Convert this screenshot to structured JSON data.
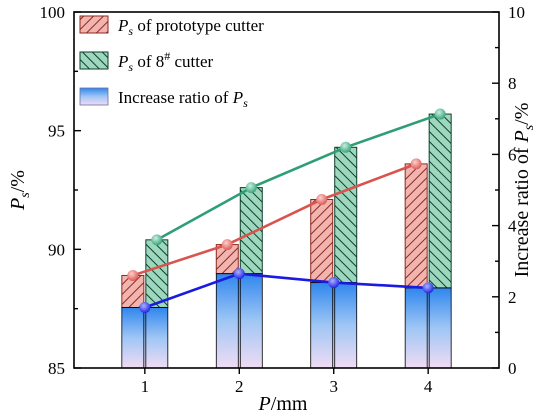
{
  "chart_data": {
    "type": "bar",
    "categories": [
      "1",
      "2",
      "3",
      "4"
    ],
    "xlabel_var": "P",
    "xlabel_unit": "/mm",
    "ylabel_var": "P",
    "ylabel_sub": "s",
    "ylabel_unit": "/%",
    "y2label_prefix": "Increase ratio of ",
    "y2label_var": "P",
    "y2label_sub": "s",
    "y2label_unit": "/%",
    "ylim": [
      85,
      100
    ],
    "yticks": [
      "85",
      "90",
      "95",
      "100"
    ],
    "y2lim": [
      0,
      10
    ],
    "y2ticks": [
      "0",
      "2",
      "4",
      "6",
      "8",
      "10"
    ],
    "legend_position": "top-left",
    "series": [
      {
        "legend_var": "P",
        "legend_sub": "s",
        "legend_rest": " of  prototype cutter",
        "kind": "bar-with-line",
        "axis": "left",
        "values": [
          88.9,
          90.2,
          92.1,
          93.6
        ],
        "color": "#d9534f",
        "fill": "#f2b4ae"
      },
      {
        "legend_var": "P",
        "legend_sub": "s",
        "legend_rest": " of  8",
        "legend_sup": "#",
        "legend_tail": " cutter",
        "kind": "bar-with-line",
        "axis": "left",
        "values": [
          90.4,
          92.6,
          94.3,
          95.7
        ],
        "color": "#2e9e75",
        "fill": "#9dd8be"
      },
      {
        "legend_prefix": "Increase ratio of ",
        "legend_var": "P",
        "legend_sub": "s",
        "kind": "bar-with-line",
        "axis": "right",
        "values": [
          1.7,
          2.65,
          2.4,
          2.25
        ],
        "color": "#1a1ae0",
        "fill_top": "#3a8ef0",
        "fill_bottom": "#ead9f2"
      }
    ]
  }
}
